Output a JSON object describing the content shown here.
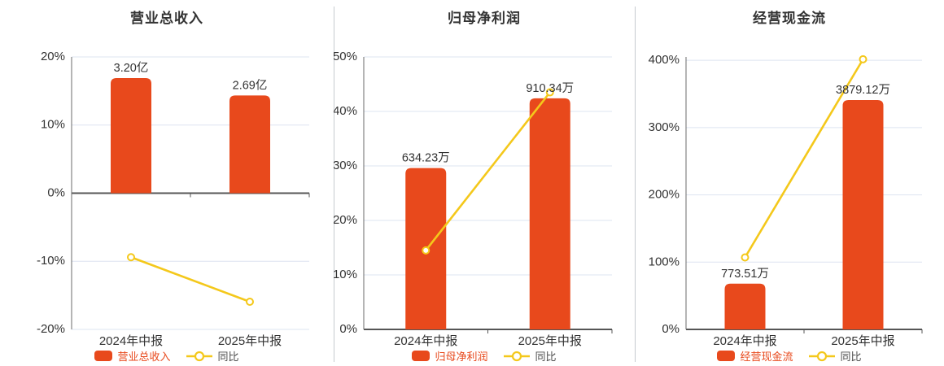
{
  "page": {
    "background": "#ffffff"
  },
  "colors": {
    "bar": "#e8491c",
    "line": "#f4c81b",
    "marker_fill": "#ffffff",
    "grid": "#dde4f0",
    "axis_line": "#6b6b6b",
    "zero_line": "#555555",
    "text": "#333333",
    "legend_yoy_text": "#4d4d4d",
    "divider": "#c6cad0"
  },
  "chart_data": [
    {
      "type": "bar+line",
      "title": "营业总收入",
      "categories": [
        "2024年中报",
        "2025年中报"
      ],
      "bar_series": {
        "name": "营业总收入",
        "value_labels": [
          "3.20亿",
          "2.69亿"
        ],
        "axis_pct": [
          16.9,
          14.35
        ]
      },
      "line_series": {
        "name": "同比",
        "values_pct": [
          -9.4,
          -15.94
        ]
      },
      "y_axis": {
        "min": -20,
        "max": 20,
        "step": 10,
        "tick_values": [
          20,
          10,
          0,
          -10,
          -20
        ],
        "tick_labels": [
          "20%",
          "10%",
          "0%",
          "-10%",
          "-20%"
        ]
      },
      "legend": [
        "营业总收入",
        "同比"
      ],
      "grid": true,
      "legend_position": "bottom"
    },
    {
      "type": "bar+line",
      "title": "归母净利润",
      "categories": [
        "2024年中报",
        "2025年中报"
      ],
      "bar_series": {
        "name": "归母净利润",
        "value_labels": [
          "634.23万",
          "910.34万"
        ],
        "axis_pct": [
          29.6,
          42.4
        ]
      },
      "line_series": {
        "name": "同比",
        "values_pct": [
          14.5,
          43.5
        ]
      },
      "y_axis": {
        "min": 0,
        "max": 50,
        "step": 10,
        "tick_values": [
          50,
          40,
          30,
          20,
          10,
          0
        ],
        "tick_labels": [
          "50%",
          "40%",
          "30%",
          "20%",
          "10%",
          "0%"
        ]
      },
      "legend": [
        "归母净利润",
        "同比"
      ],
      "grid": true,
      "legend_position": "bottom"
    },
    {
      "type": "bar+line",
      "title": "经营现金流",
      "categories": [
        "2024年中报",
        "2025年中报"
      ],
      "bar_series": {
        "name": "经营现金流",
        "value_labels": [
          "773.51万",
          "3879.12万"
        ],
        "axis_pct": [
          68,
          341
        ]
      },
      "line_series": {
        "name": "同比",
        "values_pct": [
          107,
          401.5
        ]
      },
      "y_axis": {
        "min": 0,
        "max": 405,
        "step": 100,
        "tick_values": [
          400,
          300,
          200,
          100,
          0
        ],
        "tick_labels": [
          "400%",
          "300%",
          "200%",
          "100%",
          "0%"
        ]
      },
      "legend": [
        "经营现金流",
        "同比"
      ],
      "grid": true,
      "legend_position": "bottom"
    }
  ]
}
